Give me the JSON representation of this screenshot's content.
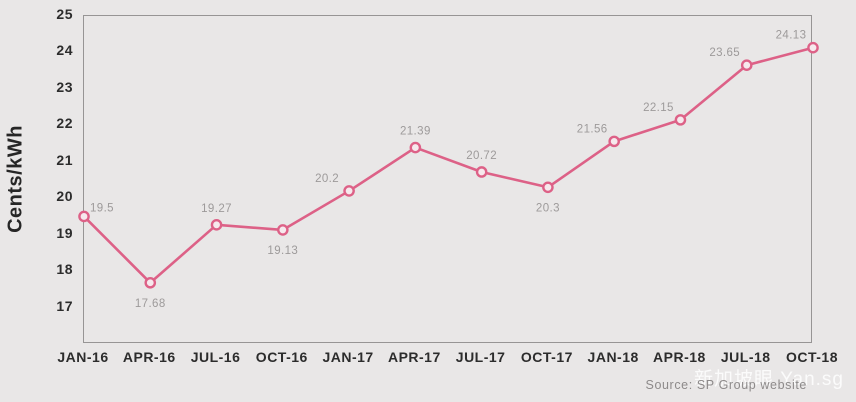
{
  "chart_data": {
    "type": "line",
    "title": "",
    "ylabel": "Cents/kWh",
    "xlabel": "",
    "categories": [
      "JAN-16",
      "APR-16",
      "JUL-16",
      "OCT-16",
      "JAN-17",
      "APR-17",
      "JUL-17",
      "OCT-17",
      "JAN-18",
      "APR-18",
      "JUL-18",
      "OCT-18"
    ],
    "values": [
      19.5,
      17.68,
      19.27,
      19.13,
      20.2,
      21.39,
      20.72,
      20.3,
      21.56,
      22.15,
      23.65,
      24.13
    ],
    "point_labels": [
      "19.5",
      "17.68",
      "19.27",
      "19.13",
      "20.2",
      "21.39",
      "20.72",
      "20.3",
      "21.56",
      "22.15",
      "23.65",
      "24.13"
    ],
    "label_positions": [
      "above-right",
      "below",
      "above",
      "below",
      "above-left",
      "above",
      "above",
      "below",
      "above-left",
      "above-left",
      "above-left",
      "above-left"
    ],
    "ylim": [
      16,
      25
    ],
    "y_ticks": [
      "25",
      "24",
      "23",
      "22",
      "21",
      "20",
      "19",
      "18",
      "17"
    ],
    "grid": false,
    "legend": false,
    "line_color": "#dd6187",
    "marker": "open-circle",
    "marker_fill": "#f6e9ed",
    "source": "Source: SP Group website",
    "watermark": "新加坡眼 Yan.sg"
  },
  "colors": {
    "background": "#e9e7e7",
    "axis_border": "#979595",
    "tick_text": "#2c2c2c",
    "data_label": "#9d9a9a",
    "source_text": "#8d8a8a",
    "watermark_text": "#ffffff"
  }
}
